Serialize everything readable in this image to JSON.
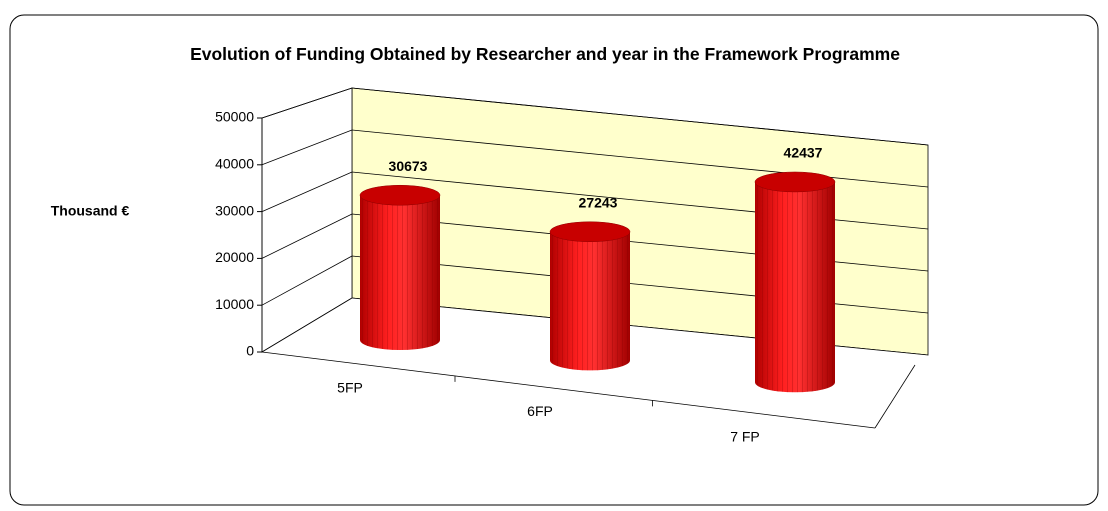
{
  "chart_data": {
    "type": "bar3d-cylinder",
    "title": "Evolution of Funding Obtained by Researcher and year in the Framework Programme",
    "y_label": "Thousand €",
    "categories": [
      "5FP",
      "6FP",
      "7 FP"
    ],
    "values": [
      30673,
      27243,
      42437
    ],
    "color": "#ff0000",
    "wall_color": "#ffffcc",
    "ylim": [
      0,
      50000
    ],
    "yticks": [
      0,
      10000,
      20000,
      30000,
      40000,
      50000
    ],
    "grid": true
  }
}
